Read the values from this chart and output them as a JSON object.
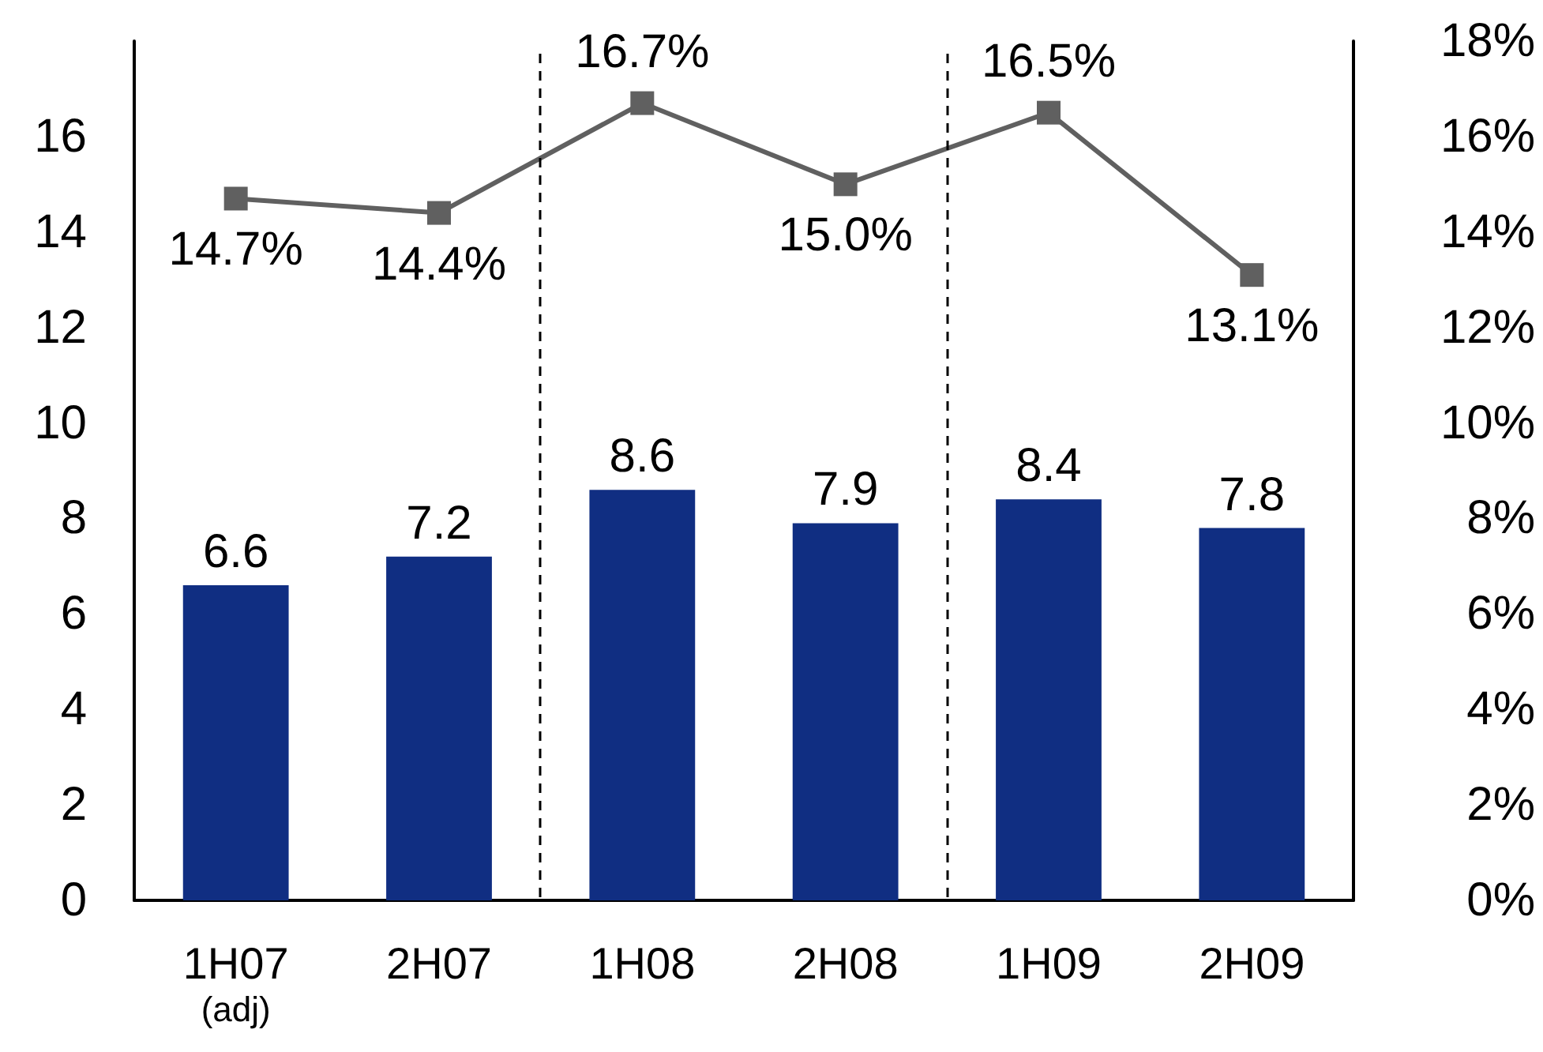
{
  "chart_data": {
    "type": "bar",
    "categories": [
      "1H07\n(adj)",
      "2H07",
      "1H08",
      "2H08",
      "1H09",
      "2H09"
    ],
    "series": [
      {
        "color": "#102e82",
        "values": [
          6.6,
          7.2,
          8.6,
          7.9,
          8.4,
          7.8
        ],
        "value_labels": [
          "6.6",
          "7.2",
          "8.6",
          "7.9",
          "8.4",
          "7.8"
        ]
      },
      {
        "type": "line",
        "axis": "y2",
        "color": "#606060",
        "values": [
          14.7,
          14.4,
          16.7,
          15.0,
          16.5,
          13.1
        ],
        "value_labels": [
          "14.7%",
          "14.4%",
          "16.7%",
          "15.0%",
          "16.5%",
          "13.1%"
        ]
      }
    ],
    "ylim": [
      0,
      18
    ],
    "yticks": [
      0,
      2,
      4,
      6,
      8,
      10,
      12,
      14,
      16
    ],
    "y2lim": [
      0,
      18
    ],
    "y2ticks": [
      {
        "value": 0,
        "label": "0%"
      },
      {
        "value": 2,
        "label": "2%"
      },
      {
        "value": 4,
        "label": "4%"
      },
      {
        "value": 6,
        "label": "6%"
      },
      {
        "value": 8,
        "label": "8%"
      },
      {
        "value": 10,
        "label": "10%"
      },
      {
        "value": 12,
        "label": "12%"
      },
      {
        "value": 14,
        "label": "14%"
      },
      {
        "value": 16,
        "label": "16%"
      },
      {
        "value": 18,
        "label": "18%"
      }
    ],
    "marker": "square",
    "line_style": "solid",
    "grid": false
  }
}
